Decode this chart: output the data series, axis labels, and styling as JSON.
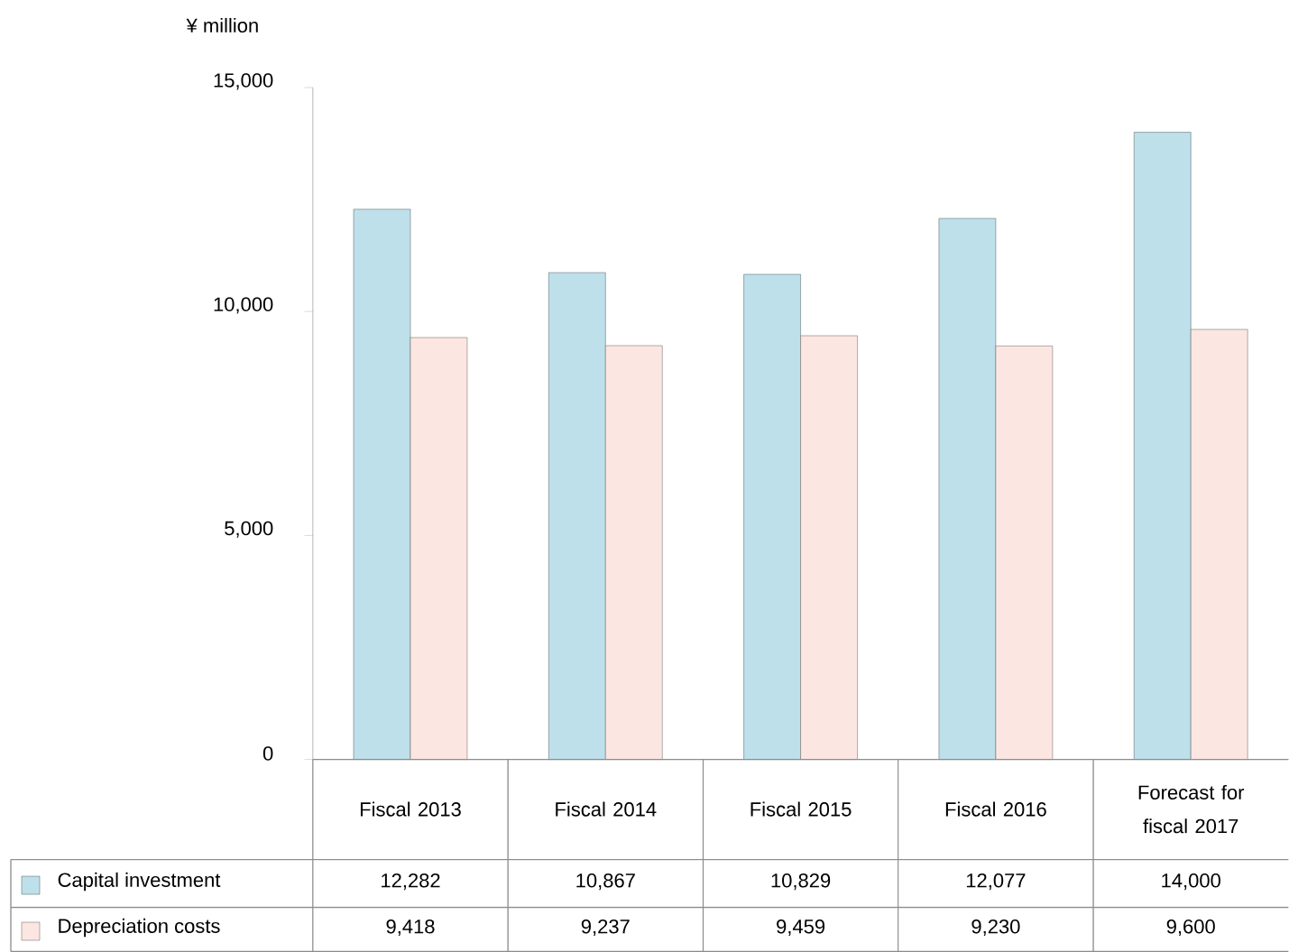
{
  "chart_data": {
    "type": "bar",
    "ylabel": "¥ million",
    "categories": [
      "Fiscal 2013",
      "Fiscal 2014",
      "Fiscal 2015",
      "Fiscal 2016",
      "Forecast for fiscal 2017"
    ],
    "series": [
      {
        "name": "Capital investment",
        "color": "#bee0ea",
        "values": [
          12282,
          10867,
          10829,
          12077,
          14000
        ],
        "value_labels": [
          "12,282",
          "10,867",
          "10,829",
          "12,077",
          "14,000"
        ]
      },
      {
        "name": "Depreciation costs",
        "color": "#fbe6e2",
        "values": [
          9418,
          9237,
          9459,
          9230,
          9600
        ],
        "value_labels": [
          "9,418",
          "9,237",
          "9,459",
          "9,230",
          "9,600"
        ]
      }
    ],
    "ylim": [
      0,
      15000
    ],
    "yticks": [
      {
        "value": 0,
        "label": "0"
      },
      {
        "value": 5000,
        "label": "5,000"
      },
      {
        "value": 10000,
        "label": "10,000"
      },
      {
        "value": 15000,
        "label": "15,000"
      }
    ],
    "grid": false,
    "legend": "bottom left"
  }
}
